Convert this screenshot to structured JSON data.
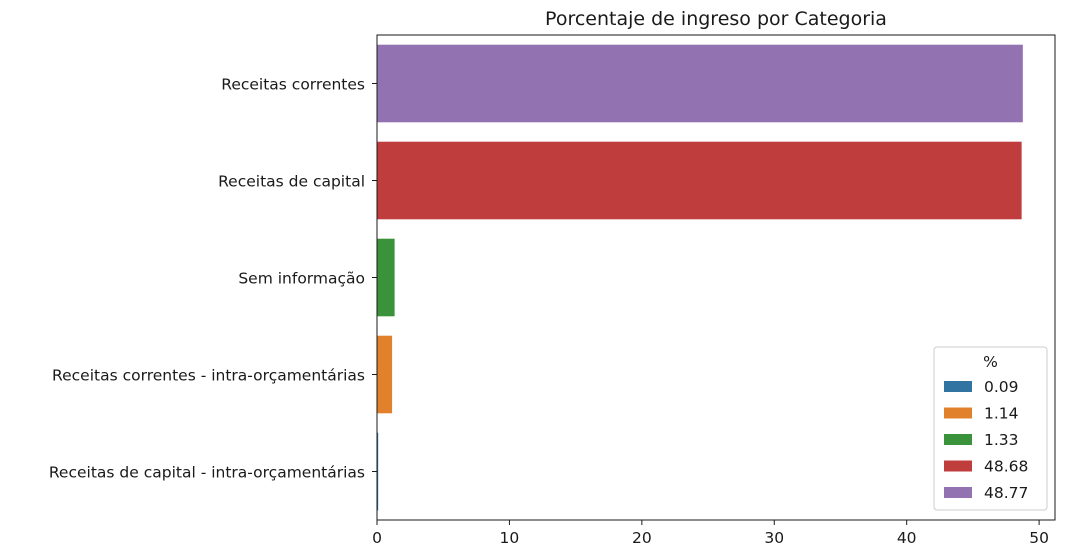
{
  "chart_data": {
    "type": "bar",
    "orientation": "horizontal",
    "title": "Porcentaje de ingreso por Categoria",
    "xlabel": "",
    "ylabel": "",
    "categories": [
      "Receitas correntes",
      "Receitas de capital",
      "Sem informação",
      "Receitas correntes - intra-orçamentárias",
      "Receitas de capital - intra-orçamentárias"
    ],
    "values": [
      48.77,
      48.68,
      1.33,
      1.14,
      0.09
    ],
    "colors": [
      "#9372b2",
      "#c03d3e",
      "#3a923a",
      "#e1812c",
      "#3274a1"
    ],
    "xlim": [
      0,
      51.2
    ],
    "xticks": [
      0,
      10,
      20,
      30,
      40,
      50
    ],
    "grid": false,
    "legend": {
      "title": "%",
      "placement": "lower-right",
      "entries": [
        {
          "label": "0.09",
          "color": "#3274a1"
        },
        {
          "label": "1.14",
          "color": "#e1812c"
        },
        {
          "label": "1.33",
          "color": "#3a923a"
        },
        {
          "label": "48.68",
          "color": "#c03d3e"
        },
        {
          "label": "48.77",
          "color": "#9372b2"
        }
      ]
    }
  }
}
